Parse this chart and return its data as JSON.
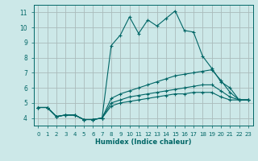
{
  "background_color": "#cce8e8",
  "grid_color": "#aabbbb",
  "line_color": "#006666",
  "xlabel": "Humidex (Indice chaleur)",
  "xlim": [
    -0.5,
    23.5
  ],
  "ylim": [
    3.5,
    11.5
  ],
  "xticks": [
    0,
    1,
    2,
    3,
    4,
    5,
    6,
    7,
    8,
    9,
    10,
    11,
    12,
    13,
    14,
    15,
    16,
    17,
    18,
    19,
    20,
    21,
    22,
    23
  ],
  "yticks": [
    4,
    5,
    6,
    7,
    8,
    9,
    10,
    11
  ],
  "series": [
    {
      "x": [
        0,
        1,
        2,
        3,
        4,
        5,
        6,
        7,
        8,
        9,
        10,
        11,
        12,
        13,
        14,
        15,
        16,
        17,
        18,
        19,
        20,
        21,
        22,
        23
      ],
      "y": [
        4.7,
        4.7,
        4.1,
        4.2,
        4.2,
        3.9,
        3.9,
        4.0,
        8.8,
        9.5,
        10.7,
        9.6,
        10.5,
        10.1,
        10.6,
        11.1,
        9.8,
        9.7,
        8.1,
        7.3,
        6.4,
        6.0,
        5.2,
        5.2
      ]
    },
    {
      "x": [
        0,
        1,
        2,
        3,
        4,
        5,
        6,
        7,
        8,
        9,
        10,
        11,
        12,
        13,
        14,
        15,
        16,
        17,
        18,
        19,
        20,
        21,
        22,
        23
      ],
      "y": [
        4.7,
        4.7,
        4.1,
        4.2,
        4.2,
        3.9,
        3.9,
        4.0,
        5.3,
        5.6,
        5.8,
        6.0,
        6.2,
        6.4,
        6.6,
        6.8,
        6.9,
        7.0,
        7.1,
        7.2,
        6.5,
        5.7,
        5.2,
        5.2
      ]
    },
    {
      "x": [
        0,
        1,
        2,
        3,
        4,
        5,
        6,
        7,
        8,
        9,
        10,
        11,
        12,
        13,
        14,
        15,
        16,
        17,
        18,
        19,
        20,
        21,
        22,
        23
      ],
      "y": [
        4.7,
        4.7,
        4.1,
        4.2,
        4.2,
        3.9,
        3.9,
        4.0,
        5.0,
        5.2,
        5.4,
        5.5,
        5.6,
        5.7,
        5.8,
        5.9,
        6.0,
        6.1,
        6.2,
        6.2,
        5.8,
        5.4,
        5.2,
        5.2
      ]
    },
    {
      "x": [
        0,
        1,
        2,
        3,
        4,
        5,
        6,
        7,
        8,
        9,
        10,
        11,
        12,
        13,
        14,
        15,
        16,
        17,
        18,
        19,
        20,
        21,
        22,
        23
      ],
      "y": [
        4.7,
        4.7,
        4.1,
        4.2,
        4.2,
        3.9,
        3.9,
        4.0,
        4.8,
        5.0,
        5.1,
        5.2,
        5.3,
        5.4,
        5.5,
        5.6,
        5.6,
        5.7,
        5.7,
        5.7,
        5.4,
        5.2,
        5.2,
        5.2
      ]
    }
  ]
}
